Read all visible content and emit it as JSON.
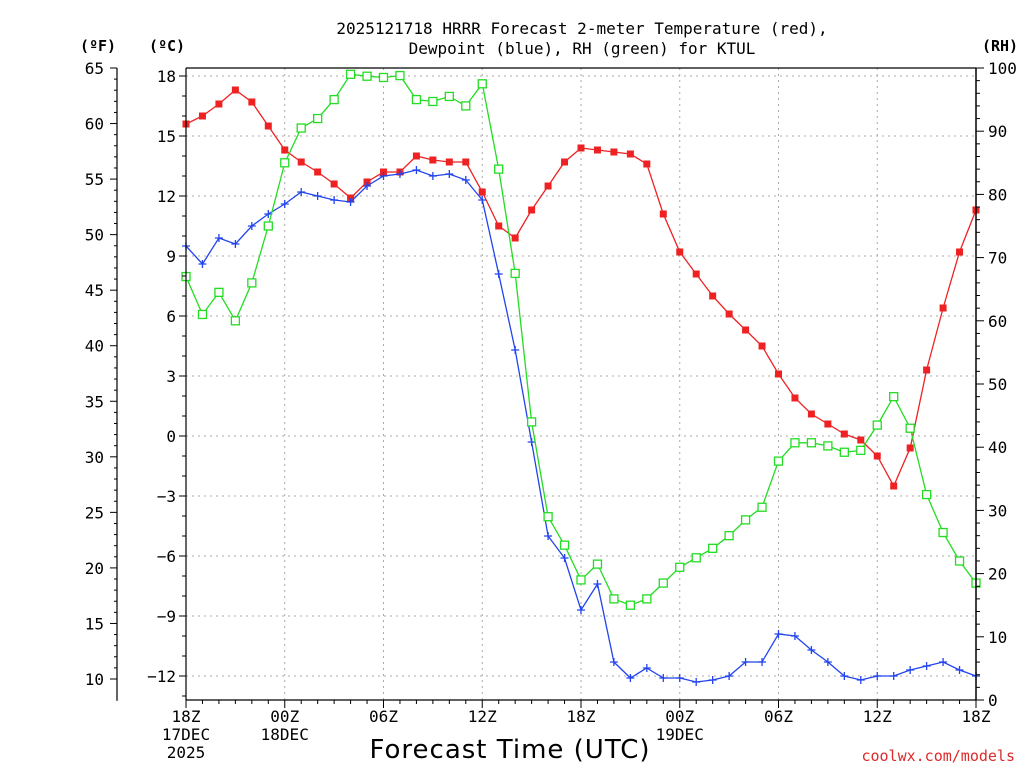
{
  "chart_data": {
    "type": "line",
    "title_lines": [
      "2025121718 HRRR Forecast 2-meter Temperature (red),",
      "Dewpoint (blue), RH (green) for KTUL"
    ],
    "xlabel": "Forecast Time (UTC)",
    "credit": "coolwx.com/models",
    "left_outer_axis": {
      "unit": "(ºF)",
      "ticks": [
        65,
        60,
        55,
        50,
        45,
        40,
        35,
        30,
        25,
        20,
        15,
        10
      ],
      "range": [
        10,
        65
      ]
    },
    "left_inner_axis": {
      "unit": "(ºC)",
      "ticks": [
        18,
        15,
        12,
        9,
        6,
        3,
        0,
        -3,
        -6,
        -9,
        -12
      ],
      "range": [
        -13.2,
        18.4
      ]
    },
    "right_axis": {
      "unit": "(RH)",
      "ticks": [
        100,
        90,
        80,
        70,
        60,
        50,
        40,
        30,
        20,
        10,
        0
      ],
      "range": [
        0,
        100
      ]
    },
    "x_range": [
      0,
      48
    ],
    "x_ticks": [
      {
        "x": 0,
        "lines": [
          "18Z",
          "17DEC",
          "2025"
        ]
      },
      {
        "x": 6,
        "lines": [
          "00Z",
          "18DEC"
        ]
      },
      {
        "x": 12,
        "lines": [
          "06Z"
        ]
      },
      {
        "x": 18,
        "lines": [
          "12Z"
        ]
      },
      {
        "x": 24,
        "lines": [
          "18Z"
        ]
      },
      {
        "x": 30,
        "lines": [
          "00Z",
          "19DEC"
        ]
      },
      {
        "x": 36,
        "lines": [
          "06Z"
        ]
      },
      {
        "x": 42,
        "lines": [
          "12Z"
        ]
      },
      {
        "x": 48,
        "lines": [
          "18Z"
        ]
      }
    ],
    "series": [
      {
        "name": "Temperature",
        "axis": "C",
        "color": "#ee2222",
        "marker": "filled-square",
        "values": [
          15.6,
          16.0,
          16.6,
          17.3,
          16.7,
          15.5,
          14.3,
          13.7,
          13.2,
          12.6,
          11.9,
          12.7,
          13.2,
          13.2,
          14.0,
          13.8,
          13.7,
          13.7,
          12.2,
          10.5,
          9.9,
          11.3,
          12.5,
          13.7,
          14.4,
          14.3,
          14.2,
          14.1,
          13.6,
          11.1,
          9.2,
          8.1,
          7.0,
          6.1,
          5.3,
          4.5,
          3.1,
          1.9,
          1.1,
          0.6,
          0.1,
          -0.2,
          -1.0,
          -2.5,
          -0.6,
          3.3,
          6.4,
          9.2,
          11.3
        ]
      },
      {
        "name": "Dewpoint",
        "axis": "C",
        "color": "#2244ee",
        "marker": "plus",
        "values": [
          9.5,
          8.6,
          9.9,
          9.6,
          10.5,
          11.1,
          11.6,
          12.2,
          12.0,
          11.8,
          11.7,
          12.5,
          13.0,
          13.1,
          13.3,
          13.0,
          13.1,
          12.8,
          11.8,
          8.1,
          4.3,
          -0.3,
          -5.0,
          -6.1,
          -8.7,
          -7.4,
          -11.3,
          -12.1,
          -11.6,
          -12.1,
          -12.1,
          -12.3,
          -12.2,
          -12.0,
          -11.3,
          -11.3,
          -9.9,
          -10.0,
          -10.7,
          -11.3,
          -12.0,
          -12.2,
          -12.0,
          -12.0,
          -11.7,
          -11.5,
          -11.3,
          -11.7,
          -12.0
        ]
      },
      {
        "name": "RH",
        "axis": "RH",
        "color": "#22dd22",
        "marker": "open-square",
        "values": [
          67,
          61,
          64.5,
          60,
          66,
          75,
          85,
          90.5,
          92,
          95,
          99,
          98.7,
          98.5,
          98.8,
          95,
          94.7,
          95.5,
          94,
          97.5,
          84,
          67.5,
          44,
          29,
          24.5,
          19,
          21.5,
          16,
          15,
          16,
          18.5,
          21,
          22.5,
          24,
          26,
          28.5,
          30.5,
          37.8,
          40.7,
          40.7,
          40.2,
          39.2,
          39.5,
          43.5,
          48,
          43,
          32.5,
          26.5,
          22,
          18.5
        ]
      }
    ]
  }
}
